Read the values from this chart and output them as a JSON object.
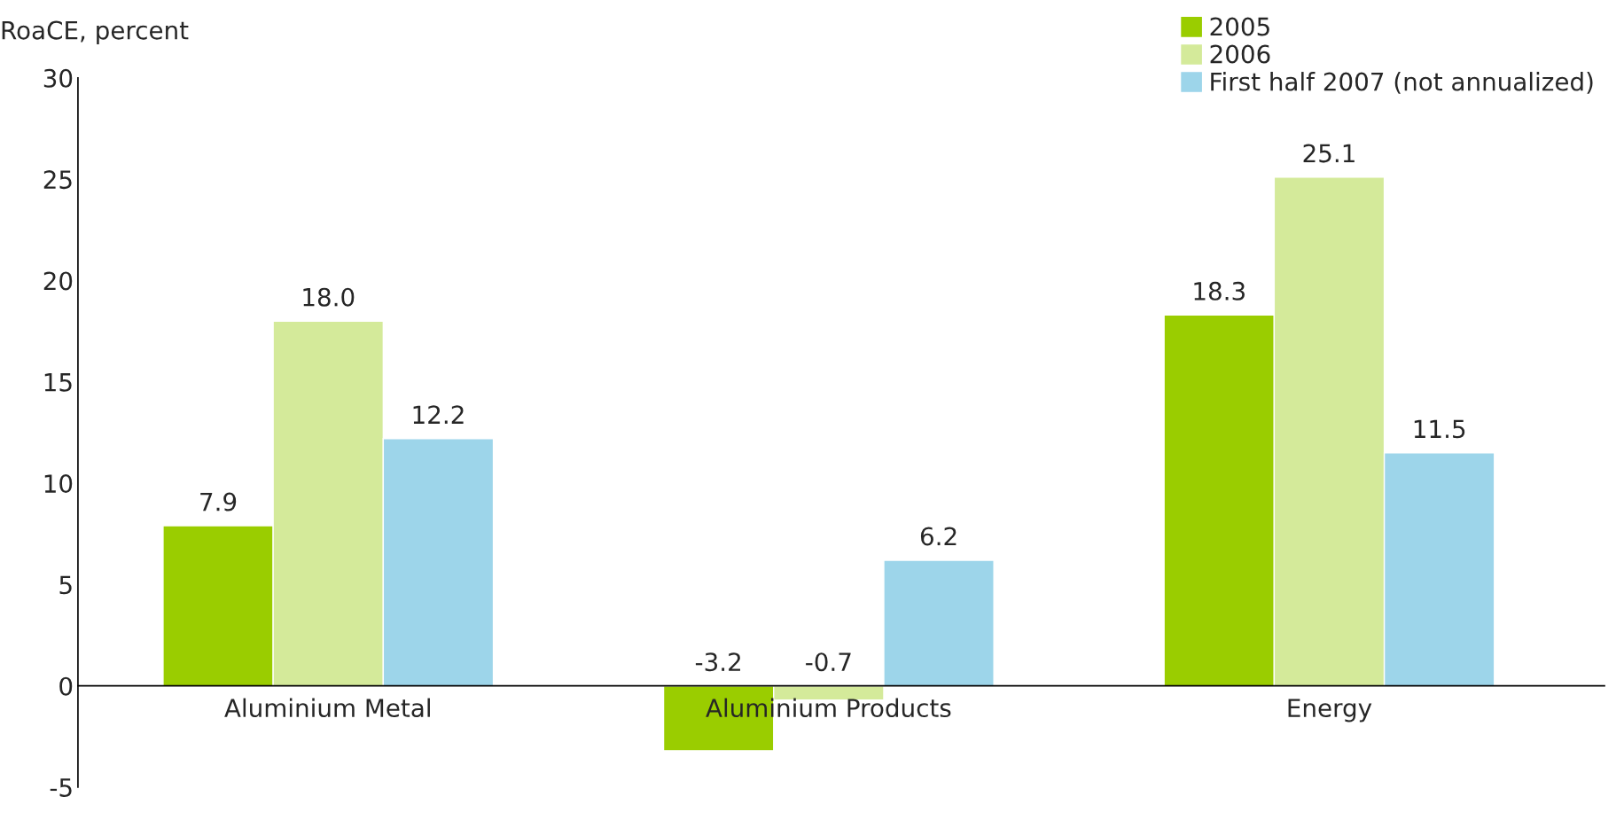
{
  "chart_data": {
    "type": "bar",
    "ylabel": "RoaCE, percent",
    "categories": [
      "Aluminium Metal",
      "Aluminium Products",
      "Energy"
    ],
    "series": [
      {
        "name": "2005",
        "color": "#9acd00",
        "values": [
          7.9,
          -3.2,
          18.3
        ],
        "value_labels": [
          "7.9",
          "-3.2",
          "18.3"
        ]
      },
      {
        "name": "2006",
        "color": "#d4ea9a",
        "values": [
          18.0,
          -0.7,
          25.1
        ],
        "value_labels": [
          "18.0",
          "-0.7",
          "25.1"
        ]
      },
      {
        "name": "First half 2007 (not annualized)",
        "color": "#9dd5ea",
        "values": [
          12.2,
          6.2,
          11.5
        ],
        "value_labels": [
          "12.2",
          "6.2",
          "11.5"
        ]
      }
    ],
    "ylim": [
      -5,
      30
    ],
    "yticks": [
      -5,
      0,
      5,
      10,
      15,
      20,
      25,
      30
    ],
    "grid": false,
    "legend": "top right"
  }
}
